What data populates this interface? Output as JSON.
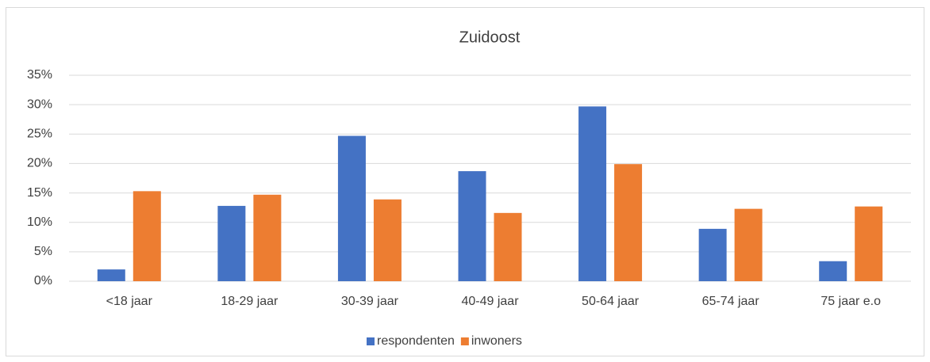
{
  "chart_data": {
    "type": "bar",
    "title": "Zuidoost",
    "categories": [
      "<18 jaar",
      "18-29 jaar",
      "30-39 jaar",
      "40-49 jaar",
      "50-64 jaar",
      "65-74 jaar",
      "75 jaar e.o"
    ],
    "series": [
      {
        "name": "respondenten",
        "color": "#4472c4",
        "values": [
          2.0,
          12.8,
          24.7,
          18.7,
          29.7,
          8.9,
          3.4
        ]
      },
      {
        "name": "inwoners",
        "color": "#ed7d31",
        "values": [
          15.3,
          14.7,
          13.9,
          11.6,
          19.9,
          12.3,
          12.7
        ]
      }
    ],
    "ylim": [
      0,
      35
    ],
    "yticks": [
      {
        "value": 0,
        "label": "0%"
      },
      {
        "value": 5,
        "label": "5%"
      },
      {
        "value": 10,
        "label": "10%"
      },
      {
        "value": 15,
        "label": "15%"
      },
      {
        "value": 20,
        "label": "20%"
      },
      {
        "value": 25,
        "label": "25%"
      },
      {
        "value": 30,
        "label": "30%"
      },
      {
        "value": 35,
        "label": "35%"
      }
    ],
    "grid": true,
    "legend": "bottom"
  }
}
